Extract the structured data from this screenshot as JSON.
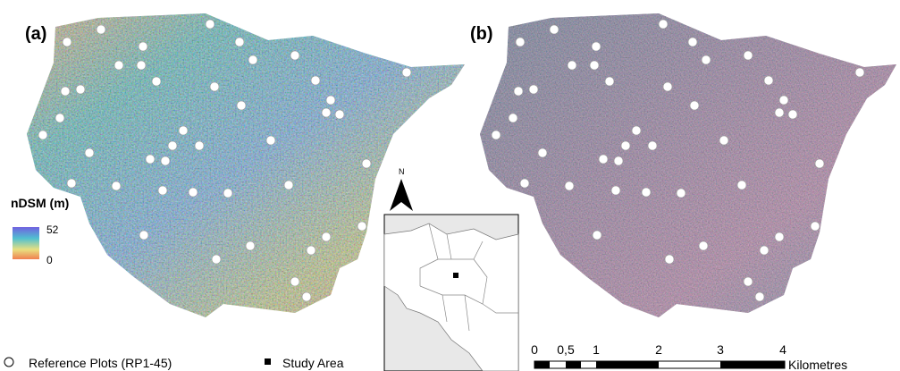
{
  "panels": [
    {
      "label": "(a)"
    },
    {
      "label": "(b)"
    }
  ],
  "legend": {
    "title": "nDSM (m)",
    "max": "52",
    "min": "0"
  },
  "north": "N",
  "key": {
    "plots": "Reference Plots (RP1-45)",
    "study_area": "Study Area"
  },
  "scale_bar": {
    "labels": [
      "0",
      "0,5",
      "1",
      "2",
      "3",
      "4"
    ],
    "unit": "Kilometres"
  }
}
